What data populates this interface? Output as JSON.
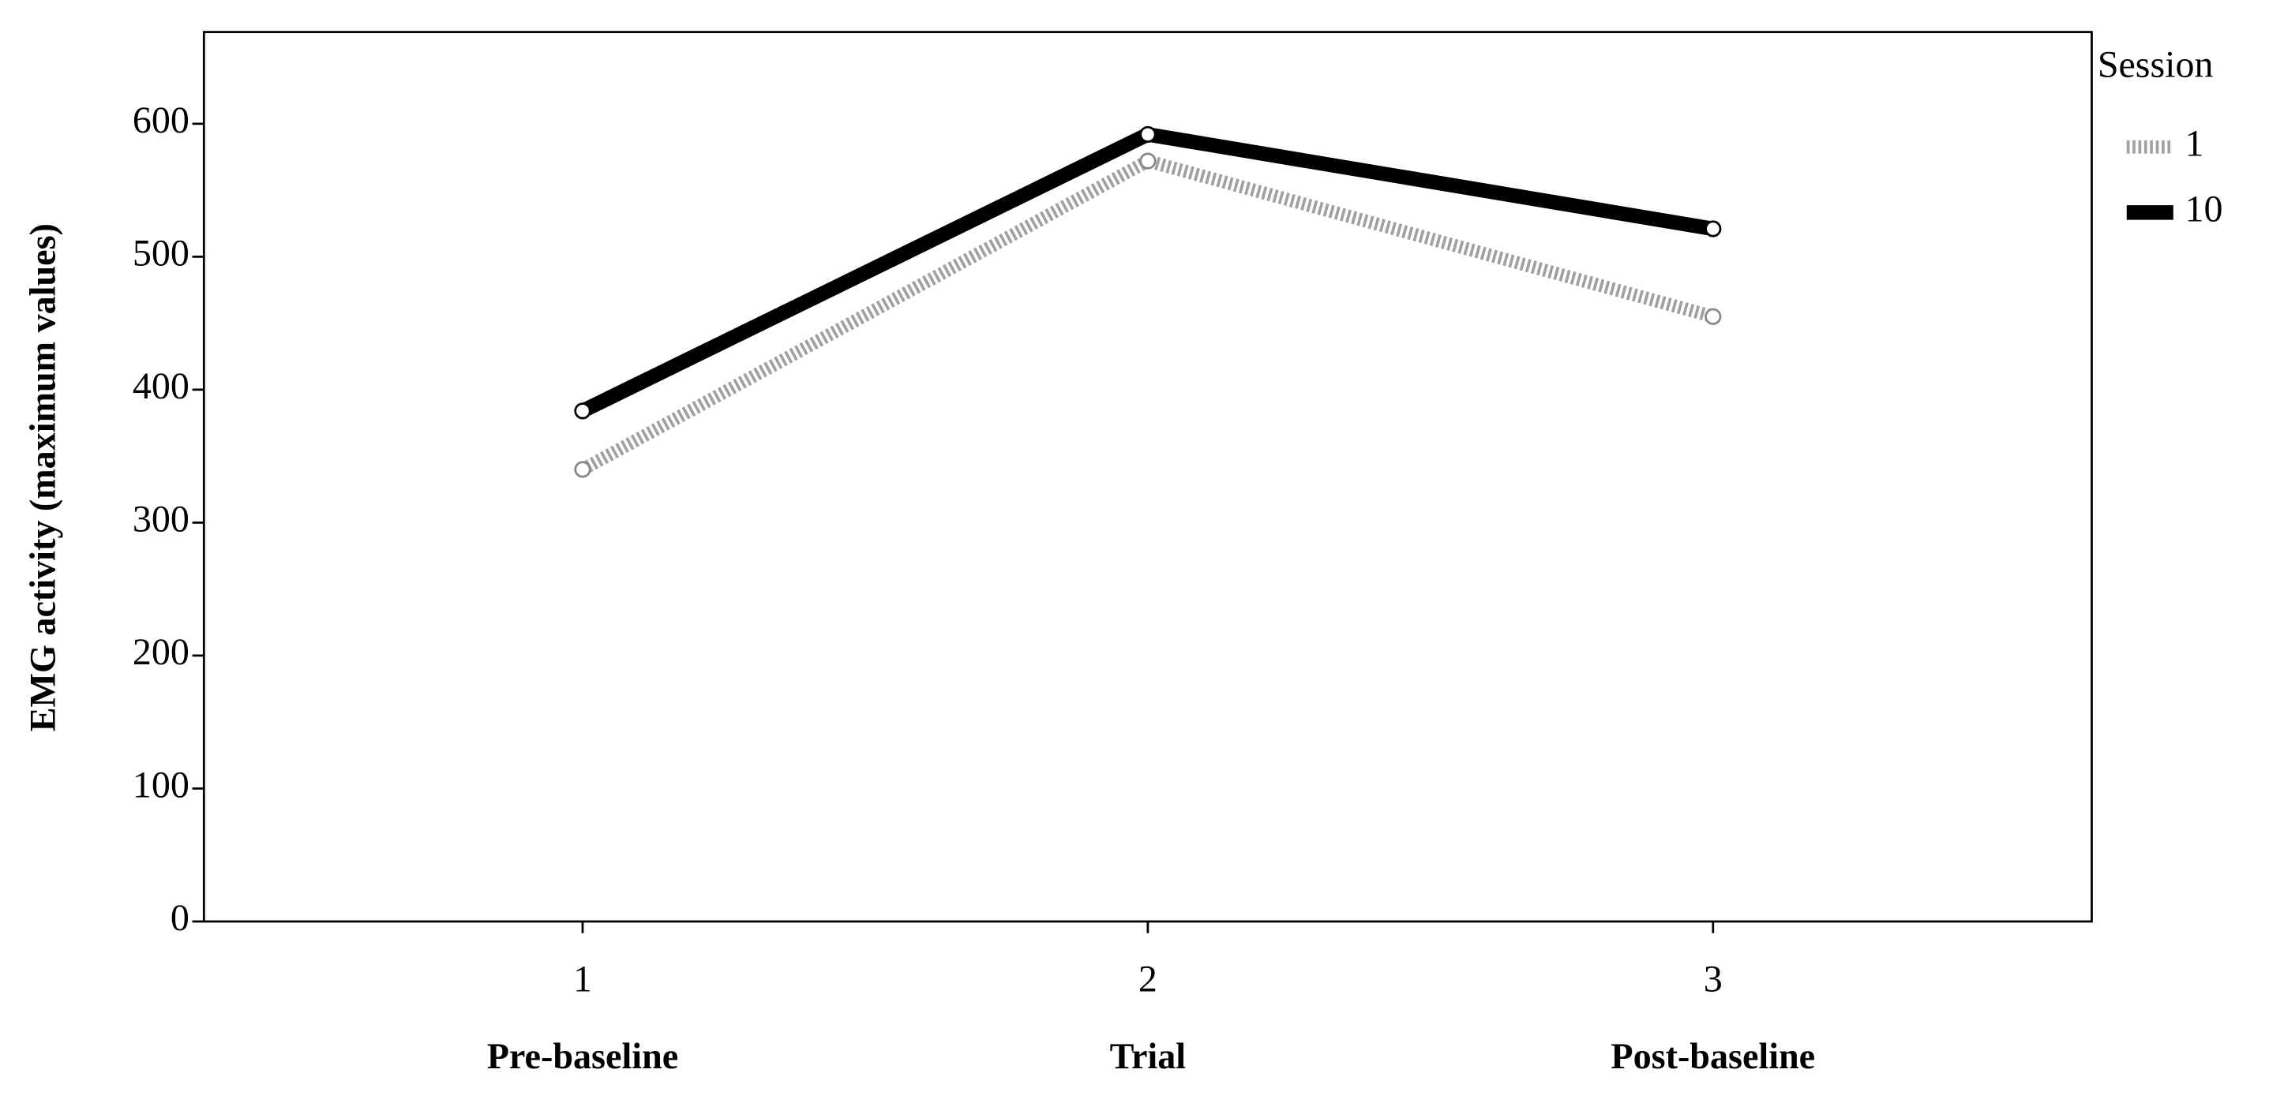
{
  "chart_data": {
    "type": "line",
    "y_label": "EMG activity (maximum values)",
    "x": [
      1,
      2,
      3
    ],
    "xlim": [
      0.33,
      3.67
    ],
    "xticks": [
      1,
      2,
      3
    ],
    "categories": [
      "Pre-baseline",
      "Trial",
      "Post-baseline"
    ],
    "ylim": [
      0,
      669
    ],
    "yticks": [
      0,
      100,
      200,
      300,
      400,
      500,
      600
    ],
    "legend_title": "Session",
    "legend": "right",
    "series": [
      {
        "name": "1",
        "color": "#a0a0a0",
        "dashed": true,
        "values": [
          340,
          572,
          455
        ]
      },
      {
        "name": "10",
        "color": "#000000",
        "dashed": false,
        "values": [
          384,
          592,
          521
        ]
      }
    ]
  }
}
